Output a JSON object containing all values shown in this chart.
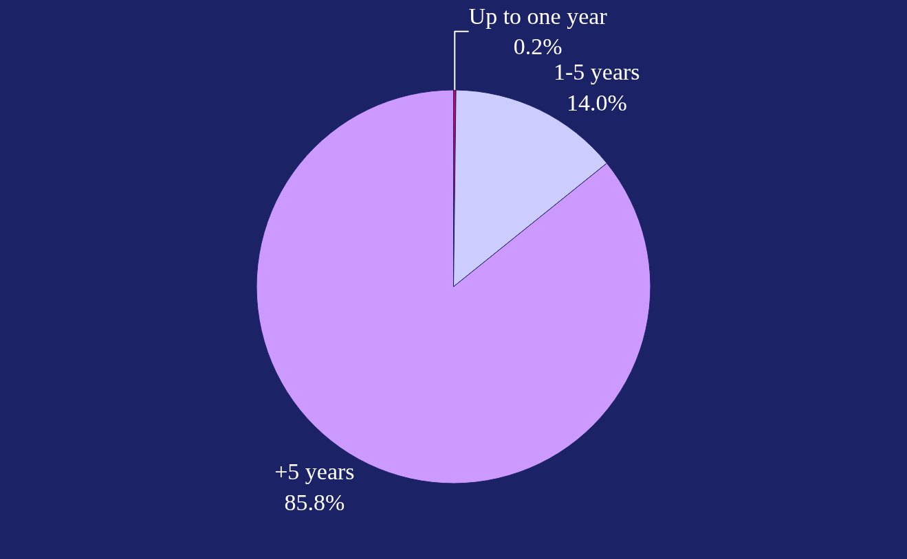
{
  "chart_data": {
    "type": "pie",
    "categories": [
      "Up to one year",
      "1-5 years",
      "+5 years"
    ],
    "values": [
      0.2,
      14.0,
      85.8
    ],
    "value_labels": [
      "0.2%",
      "14.0%",
      "85.8%"
    ],
    "colors": [
      "#cc0066",
      "#ccccff",
      "#cc99ff"
    ],
    "legend": false
  }
}
